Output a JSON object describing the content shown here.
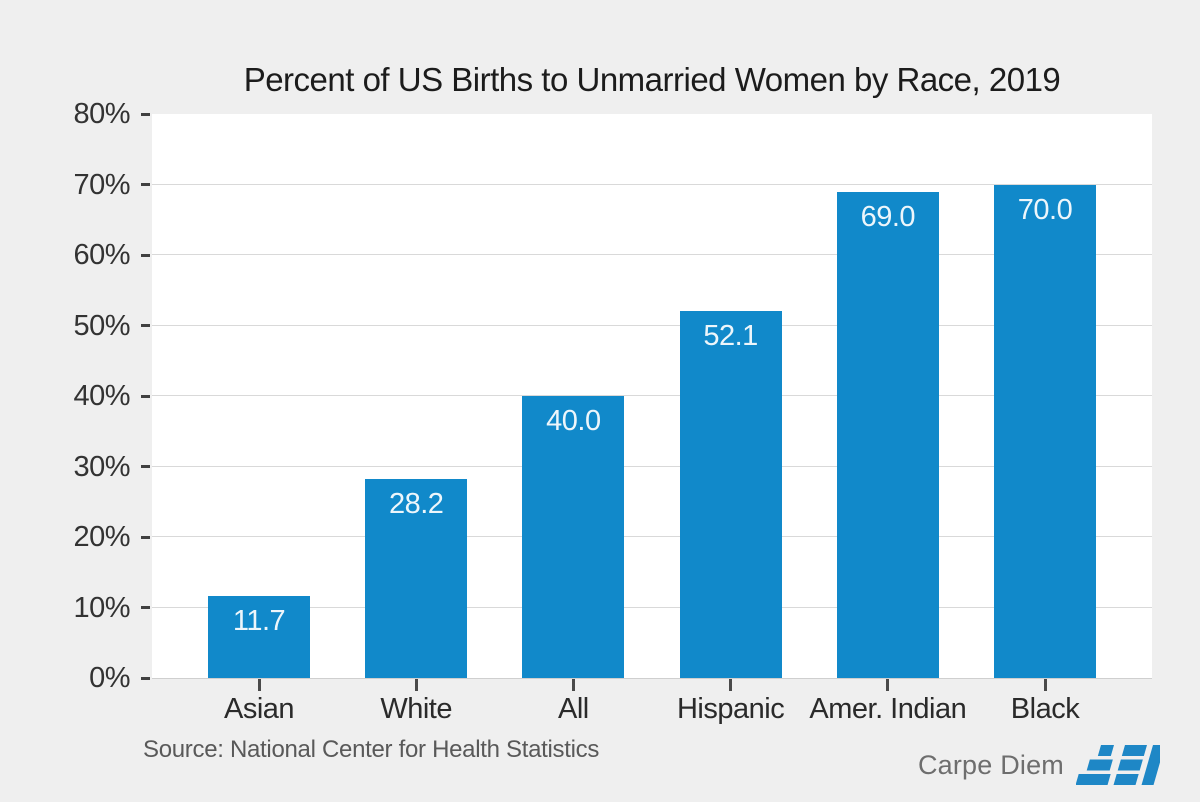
{
  "chart_data": {
    "type": "bar",
    "title": "Percent of US Births to Unmarried Women by Race, 2019",
    "categories": [
      "Asian",
      "White",
      "All",
      "Hispanic",
      "Amer. Indian",
      "Black"
    ],
    "values": [
      11.7,
      28.2,
      40.0,
      52.1,
      69.0,
      70.0
    ],
    "bar_labels": [
      "11.7",
      "28.2",
      "40.0",
      "52.1",
      "69.0",
      "70.0"
    ],
    "y_tick_labels": [
      "0%",
      "10%",
      "20%",
      "30%",
      "40%",
      "50%",
      "60%",
      "70%",
      "80%"
    ],
    "ylim": [
      0,
      80
    ],
    "xlabel": "",
    "ylabel": "",
    "legend": "none",
    "grid": "horizontal",
    "colors": {
      "bar": "#1189ca",
      "value_label": "#edf6fb",
      "plot_background": "#ffffff",
      "page_background": "#efefef",
      "gridline": "#d9d9d9",
      "axis_text": "#333333"
    }
  },
  "footer": {
    "source": "Source: National Center for Health Statistics",
    "brand": "Carpe Diem",
    "logo": "AEI",
    "brand_color": "#6e6e6e",
    "logo_color": "#1e87c6"
  }
}
